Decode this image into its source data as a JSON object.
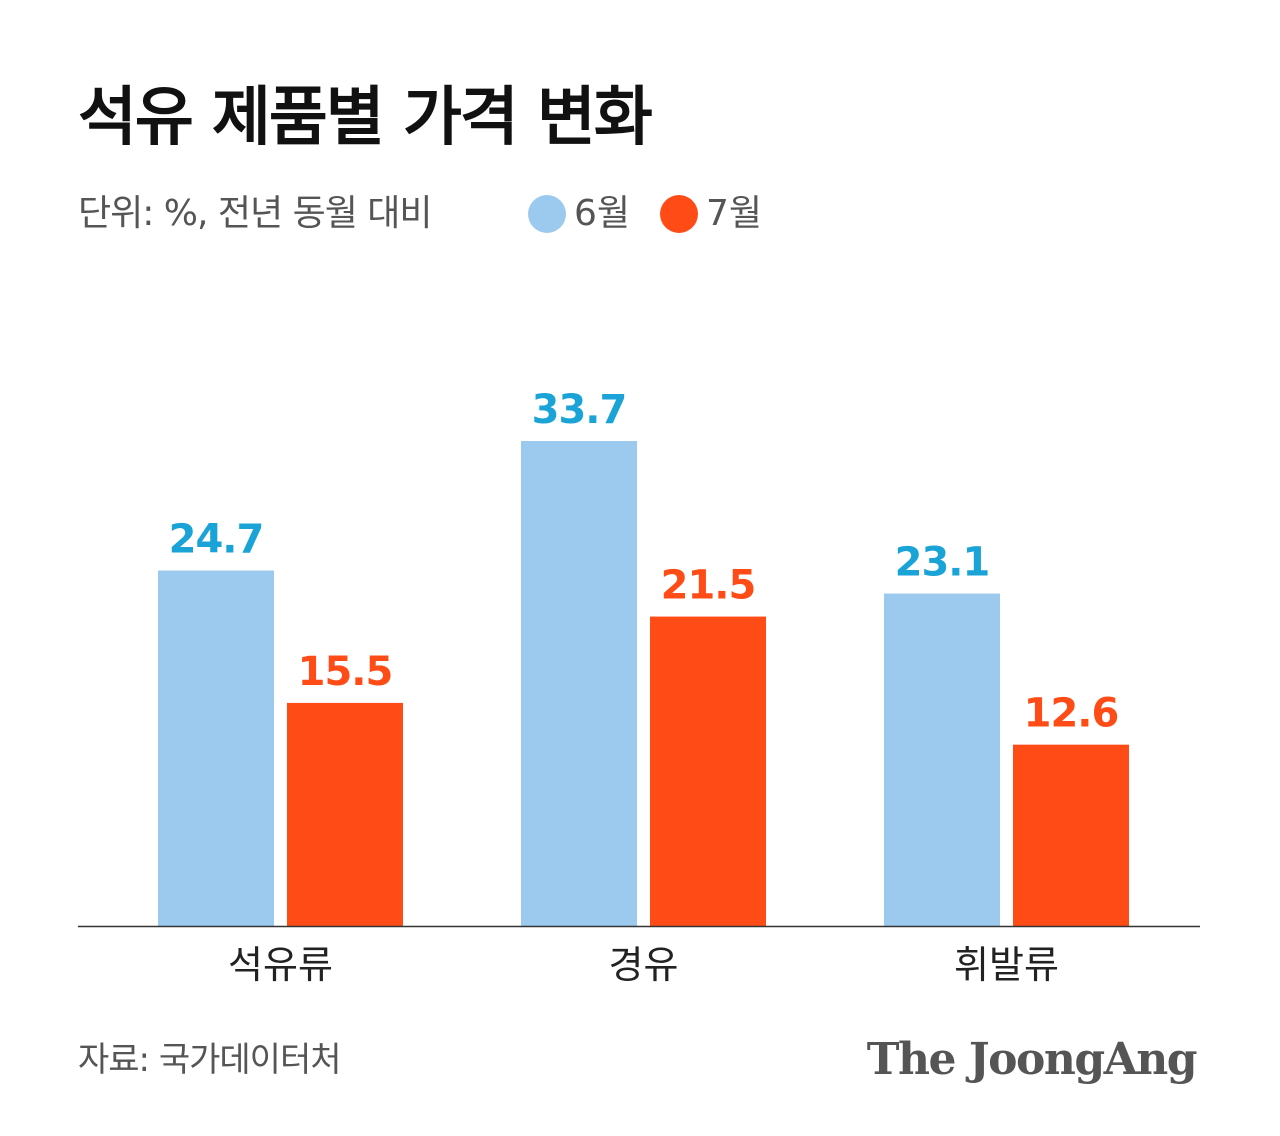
{
  "header": {
    "title": "석유 제품별 가격 변화",
    "unit_note": "단위: %, 전년 동월 대비"
  },
  "legend": [
    {
      "label": "6월",
      "color": "#9ccaee"
    },
    {
      "label": "7월",
      "color": "#ff4c17"
    }
  ],
  "colors": {
    "series_june": "#9ccaee",
    "series_july": "#ff4c17",
    "label_june": "#1aa3d6",
    "label_july": "#ff4c17",
    "baseline": "#333333"
  },
  "chart_data": {
    "type": "bar",
    "title": "석유 제품별 가격 변화",
    "xlabel": "",
    "ylabel": "",
    "categories": [
      "석유류",
      "경유",
      "휘발류"
    ],
    "series": [
      {
        "name": "6월",
        "values": [
          24.7,
          33.7,
          23.1
        ]
      },
      {
        "name": "7월",
        "values": [
          15.5,
          21.5,
          12.6
        ]
      }
    ],
    "value_labels": {
      "6월": [
        "24.7",
        "33.7",
        "23.1"
      ],
      "7월": [
        "15.5",
        "21.5",
        "12.6"
      ]
    },
    "ylim": [
      0,
      33.7
    ],
    "grid": false,
    "legend_position": "top"
  },
  "footer": {
    "source": "자료: 국가데이터처",
    "logo_text": "The JoongAng"
  }
}
